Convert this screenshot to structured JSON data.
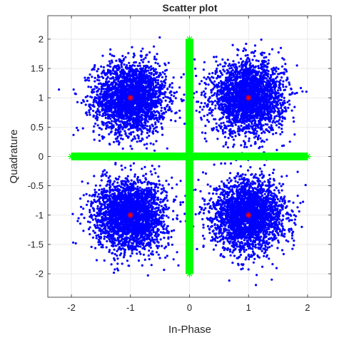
{
  "chart_data": {
    "type": "scatter",
    "title": "Scatter plot",
    "xlabel": "In-Phase",
    "ylabel": "Quadrature",
    "xlim": [
      -2.4,
      2.4
    ],
    "ylim": [
      -2.4,
      2.4
    ],
    "xticks": [
      -2,
      -1,
      0,
      1,
      2
    ],
    "yticks": [
      -2,
      -1.5,
      -1,
      -0.5,
      0,
      0.5,
      1,
      1.5,
      2
    ],
    "xtick_labels": [
      "-2",
      "-1",
      "0",
      "1",
      "2"
    ],
    "ytick_labels": [
      "-2",
      "-1.5",
      "-1",
      "-0.5",
      "0",
      "0.5",
      "1",
      "1.5",
      "2"
    ],
    "grid": true,
    "series": [
      {
        "kind": "noisy-received-symbols",
        "color": "#0000ff",
        "marker": "dot",
        "cluster_centers": [
          [
            -1,
            1
          ],
          [
            1,
            1
          ],
          [
            -1,
            -1
          ],
          [
            1,
            -1
          ]
        ],
        "cluster_spread_std": 0.3
      },
      {
        "kind": "axis-cross",
        "color": "#00ff00",
        "marker": "star",
        "segments": [
          {
            "x": [
              -2,
              2
            ],
            "y": [
              0,
              0
            ]
          },
          {
            "x": [
              0,
              0
            ],
            "y": [
              -2,
              2
            ]
          }
        ]
      },
      {
        "kind": "reference-constellation",
        "color": "#ff0000",
        "marker": "star",
        "points": [
          [
            -1,
            1
          ],
          [
            1,
            1
          ],
          [
            -1,
            -1
          ],
          [
            1,
            -1
          ]
        ]
      }
    ]
  }
}
